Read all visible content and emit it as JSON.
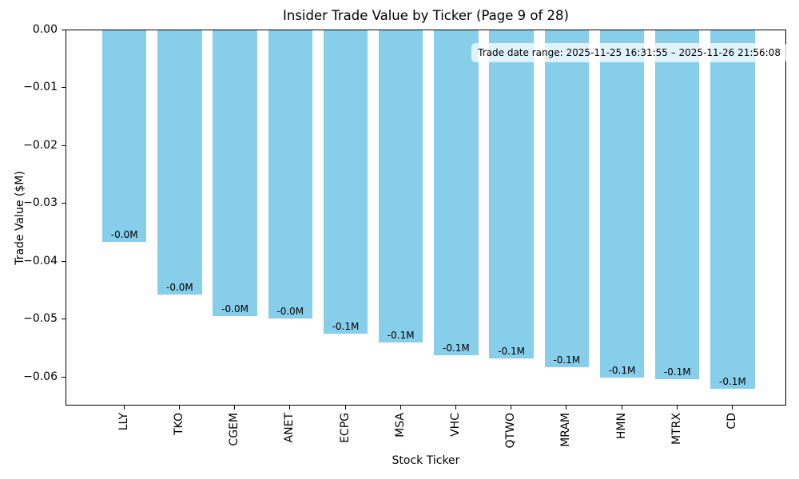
{
  "chart_data": {
    "type": "bar",
    "title": "Insider Trade Value by Ticker (Page 9 of 28)",
    "xlabel": "Stock Ticker",
    "ylabel": "Trade Value ($M)",
    "categories": [
      "LLY",
      "TKO",
      "CGEM",
      "ANET",
      "ECPG",
      "MSA",
      "VHC",
      "QTWO",
      "MRAM",
      "HMN",
      "MTRX",
      "CD"
    ],
    "values": [
      -0.0366,
      -0.0457,
      -0.0494,
      -0.0498,
      -0.0525,
      -0.054,
      -0.0562,
      -0.0567,
      -0.0583,
      -0.0601,
      -0.0603,
      -0.062
    ],
    "bar_labels": [
      "-0.0M",
      "-0.0M",
      "-0.0M",
      "-0.0M",
      "-0.1M",
      "-0.1M",
      "-0.1M",
      "-0.1M",
      "-0.1M",
      "-0.1M",
      "-0.1M",
      "-0.1M"
    ],
    "bar_color": "#87CEEB",
    "ylim": [
      -0.065,
      0
    ],
    "yticks": [
      0,
      -0.01,
      -0.02,
      -0.03,
      -0.04,
      -0.05,
      -0.06
    ],
    "ytick_labels": [
      "0.00",
      "−0.01",
      "−0.02",
      "−0.03",
      "−0.04",
      "−0.05",
      "−0.06"
    ],
    "annotation": "Trade date range: 2025-11-25 16:31:55 – 2025-11-26 21:56:08",
    "grid": false,
    "legend": null,
    "background": "#ffffff"
  }
}
